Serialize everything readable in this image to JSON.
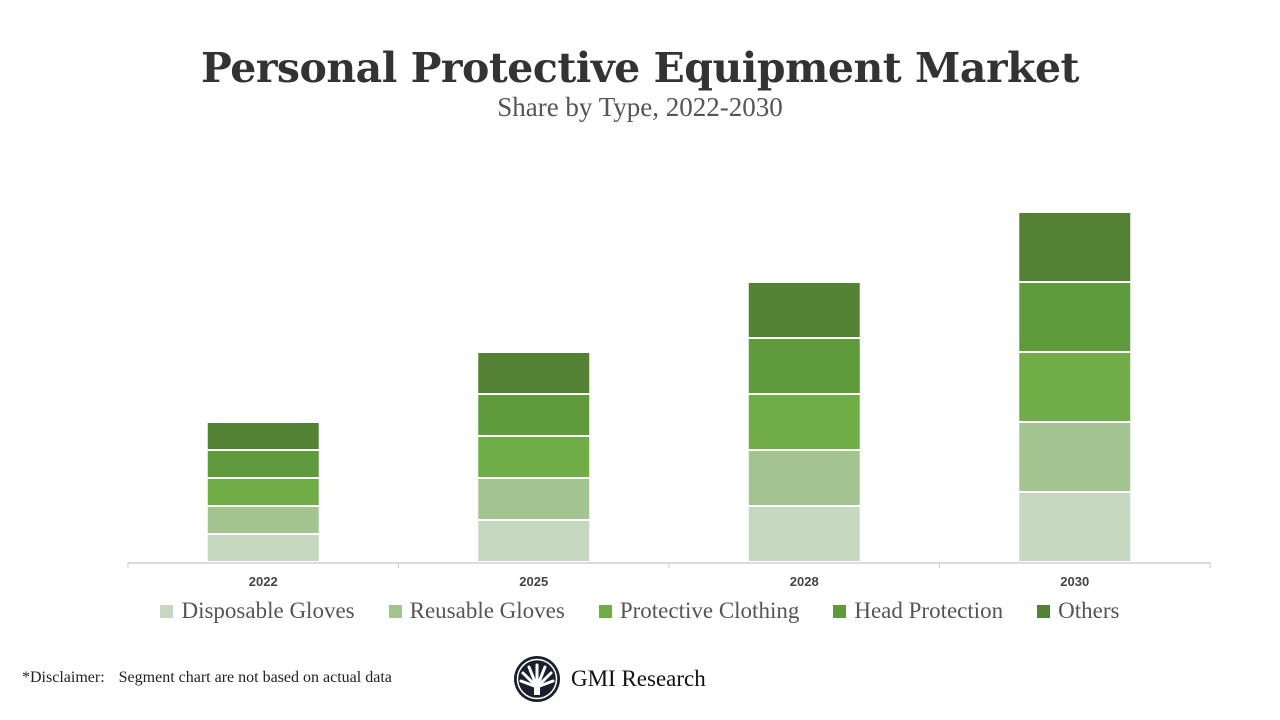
{
  "chart_data": {
    "type": "bar",
    "stacked": true,
    "title": "Personal Protective Equipment Market",
    "subtitle": "Share by Type, 2022-2030",
    "categories": [
      "2022",
      "2025",
      "2028",
      "2030"
    ],
    "series": [
      {
        "name": "Disposable Gloves",
        "color": "#c5d8bf",
        "values": [
          2,
          3,
          4,
          5
        ]
      },
      {
        "name": "Reusable Gloves",
        "color": "#a3c491",
        "values": [
          2,
          3,
          4,
          5
        ]
      },
      {
        "name": "Protective Clothing",
        "color": "#70ad47",
        "values": [
          2,
          3,
          4,
          5
        ]
      },
      {
        "name": "Head Protection",
        "color": "#5f9a3c",
        "values": [
          2,
          3,
          4,
          5
        ]
      },
      {
        "name": "Others",
        "color": "#548235",
        "values": [
          2,
          3,
          4,
          5
        ]
      }
    ],
    "ylim": [
      0,
      25
    ],
    "grid": false,
    "legend_position": "bottom"
  },
  "footer": {
    "disclaimer_label": "*Disclaimer:",
    "disclaimer_text": "Segment chart are not based on actual data",
    "brand": "GMI Research"
  }
}
